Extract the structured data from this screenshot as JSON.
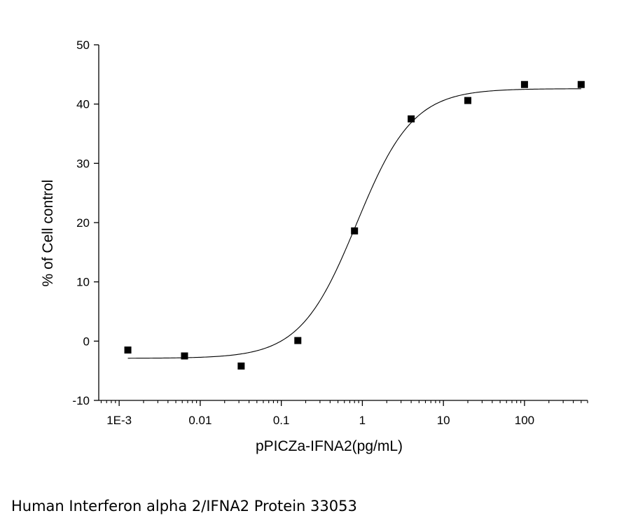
{
  "caption": "Human Interferon alpha 2/IFNA2 Protein 33053",
  "chart_data": {
    "type": "scatter",
    "title": "",
    "xlabel": "pPICZa-IFNA2(pg/mL)",
    "ylabel": "% of Cell control",
    "x_scale": "log",
    "xlim": [
      0.00056,
      600
    ],
    "ylim": [
      -10,
      50
    ],
    "x_ticks": [
      {
        "value": 0.001,
        "label": "1E-3"
      },
      {
        "value": 0.01,
        "label": "0.01"
      },
      {
        "value": 0.1,
        "label": "0.1"
      },
      {
        "value": 1,
        "label": "1"
      },
      {
        "value": 10,
        "label": "10"
      },
      {
        "value": 100,
        "label": "100"
      }
    ],
    "y_ticks": [
      -10,
      0,
      10,
      20,
      30,
      40,
      50
    ],
    "grid": false,
    "legend": "none",
    "colors": {
      "marker": "#000000",
      "curve": "#000000",
      "axis": "#000000"
    },
    "series": [
      {
        "type": "scatter",
        "marker": "square",
        "x": [
          0.00128,
          0.0064,
          0.032,
          0.16,
          0.8,
          4,
          20,
          100,
          500
        ],
        "y": [
          -1.5,
          -2.5,
          -4.2,
          0.1,
          18.6,
          37.5,
          40.6,
          43.3,
          43.3
        ]
      },
      {
        "type": "fit",
        "model": "4PL logistic",
        "bottom": -2.9,
        "top": 42.6,
        "ec50": 0.85,
        "hill": 1.25,
        "x_range": [
          0.00128,
          500
        ]
      }
    ]
  }
}
